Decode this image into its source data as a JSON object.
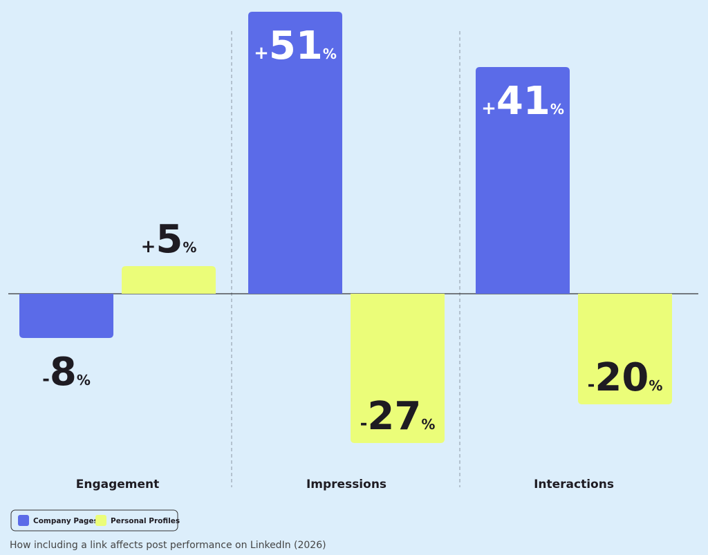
{
  "chart_data": {
    "type": "bar",
    "caption": "How including a link affects post performance on LinkedIn (2026)",
    "categories": [
      "Engagement",
      "Impressions",
      "Interactions"
    ],
    "series": [
      {
        "name": "Company Pages",
        "color": "#5b6be8",
        "values": [
          -8,
          51,
          41
        ],
        "value_labels": [
          "-8%",
          "+51%",
          "+41%"
        ]
      },
      {
        "name": "Personal Profiles",
        "color": "#ebfd79",
        "values": [
          5,
          -27,
          -20
        ],
        "value_labels": [
          "+5%",
          "-27%",
          "-20%"
        ]
      }
    ]
  }
}
